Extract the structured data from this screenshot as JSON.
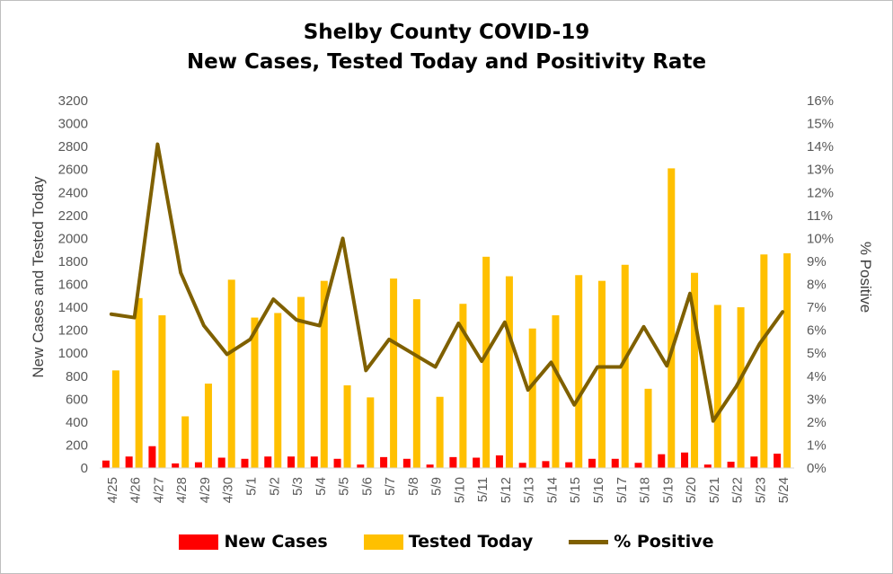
{
  "chart_data": {
    "type": "bar",
    "title_line1": "Shelby County COVID-19",
    "title_line2": "New Cases, Tested Today and Positivity Rate",
    "categories": [
      "4/25",
      "4/26",
      "4/27",
      "4/28",
      "4/29",
      "4/30",
      "5/1",
      "5/2",
      "5/3",
      "5/4",
      "5/5",
      "5/6",
      "5/7",
      "5/8",
      "5/9",
      "5/10",
      "5/11",
      "5/12",
      "5/13",
      "5/14",
      "5/15",
      "5/16",
      "5/17",
      "5/18",
      "5/19",
      "5/20",
      "5/21",
      "5/22",
      "5/23",
      "5/24"
    ],
    "ylabel_left": "New Cases and Tested Today",
    "ylabel_right": "% Positive",
    "ylim_left": [
      0,
      3200
    ],
    "yticks_left": [
      "0",
      "200",
      "400",
      "600",
      "800",
      "1000",
      "1200",
      "1400",
      "1600",
      "1800",
      "2000",
      "2200",
      "2400",
      "2600",
      "2800",
      "3000",
      "3200"
    ],
    "ylim_right": [
      0,
      16
    ],
    "yticks_right": [
      "0%",
      "1%",
      "2%",
      "3%",
      "4%",
      "5%",
      "6%",
      "7%",
      "8%",
      "9%",
      "10%",
      "11%",
      "12%",
      "13%",
      "14%",
      "15%",
      "16%"
    ],
    "grid": false,
    "legend_position": "bottom",
    "series": [
      {
        "name": "New Cases",
        "kind": "bar",
        "axis": "left",
        "color": "#ff0000",
        "values": [
          65,
          100,
          190,
          40,
          50,
          90,
          80,
          100,
          100,
          100,
          80,
          30,
          95,
          80,
          30,
          95,
          90,
          110,
          45,
          60,
          50,
          80,
          80,
          45,
          120,
          135,
          30,
          55,
          100,
          125
        ]
      },
      {
        "name": "Tested Today",
        "kind": "bar",
        "axis": "left",
        "color": "#ffc000",
        "values": [
          850,
          1480,
          1330,
          450,
          735,
          1640,
          1310,
          1350,
          1490,
          1630,
          720,
          615,
          1650,
          1470,
          620,
          1430,
          1840,
          1670,
          1215,
          1330,
          1680,
          1630,
          1770,
          690,
          2610,
          1700,
          1420,
          1400,
          1860,
          1870
        ]
      },
      {
        "name": "% Positive",
        "kind": "line",
        "axis": "right",
        "color": "#7f6000",
        "values": [
          6.7,
          6.55,
          14.1,
          8.5,
          6.2,
          4.95,
          5.6,
          7.35,
          6.45,
          6.2,
          10.0,
          4.25,
          5.6,
          5.0,
          4.4,
          6.3,
          4.65,
          6.35,
          3.4,
          4.6,
          2.75,
          4.4,
          4.4,
          6.15,
          4.45,
          7.6,
          2.05,
          3.55,
          5.4,
          6.8
        ]
      }
    ]
  }
}
